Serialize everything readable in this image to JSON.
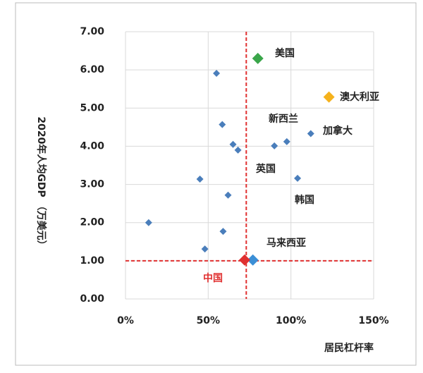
{
  "chart_data": {
    "type": "scatter",
    "x_label": "居民杠杆率",
    "y_label": "2020年人均GDP （万美元）",
    "xlim": [
      0,
      150
    ],
    "xticks": [
      {
        "value": 0,
        "label": "0%"
      },
      {
        "value": 50,
        "label": "50%"
      },
      {
        "value": 100,
        "label": "100%"
      },
      {
        "value": 150,
        "label": "150%"
      }
    ],
    "ylim": [
      0,
      7
    ],
    "yticks": [
      {
        "value": 0,
        "label": "0.00"
      },
      {
        "value": 1,
        "label": "1.00"
      },
      {
        "value": 2,
        "label": "2.00"
      },
      {
        "value": 3,
        "label": "3.00"
      },
      {
        "value": 4,
        "label": "4.00"
      },
      {
        "value": 5,
        "label": "5.00"
      },
      {
        "value": 6,
        "label": "6.00"
      },
      {
        "value": 7,
        "label": "7.00"
      }
    ],
    "grid": true,
    "series": [
      {
        "color": "#4a7ebb",
        "x": [
          55,
          58.5,
          65,
          68,
          90,
          97.5,
          112,
          45,
          104,
          62,
          14,
          59,
          48
        ],
        "values": [
          5.91,
          4.57,
          4.05,
          3.9,
          4.01,
          4.12,
          4.33,
          3.14,
          3.16,
          2.72,
          2.0,
          1.77,
          1.31
        ]
      },
      {
        "color": "#3aa64a",
        "x": [
          80
        ],
        "values": [
          6.3
        ]
      },
      {
        "color": "#f5b21c",
        "x": [
          123
        ],
        "values": [
          5.29
        ]
      },
      {
        "color": "#3b8fd6",
        "x": [
          77
        ],
        "values": [
          1.02
        ]
      },
      {
        "color": "#e03030",
        "x": [
          72
        ],
        "values": [
          1.02
        ]
      }
    ],
    "reference_color": "#e03030",
    "hline": 1.0,
    "vline": 73,
    "annotations": [
      "美国",
      "澳大利亚",
      "新西兰",
      "加拿大",
      "英国",
      "韩国",
      "马来西亚",
      "中国"
    ]
  }
}
